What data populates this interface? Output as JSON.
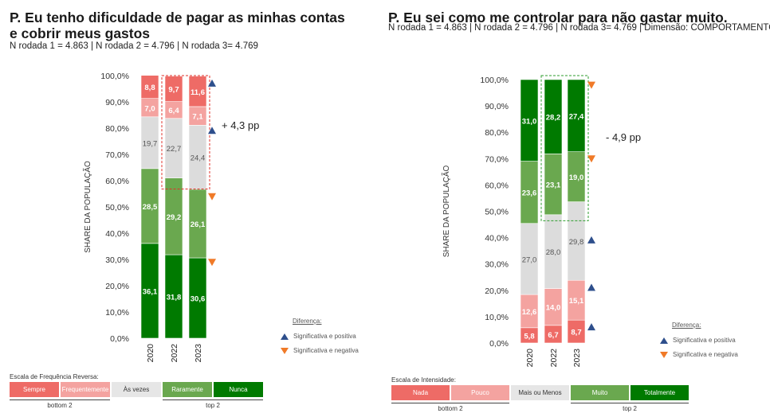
{
  "panels": [
    {
      "title": "P. Eu tenho dificuldade de pagar as minhas contas\ne cobrir meus gastos",
      "subtitle": "N rodada 1 = 4.863  | N rodada 2 = 4.796 | N rodada 3= 4.769",
      "legend": {
        "title": "Diferença:",
        "positive": "Significativa e positiva",
        "negative": "Significativa e negativa"
      },
      "scale": {
        "title": "Escala de Frequência Reversa:",
        "labels": [
          "Sempre",
          "Frequentemente",
          "Às vezes",
          "Raramente",
          "Nunca"
        ],
        "bottom_label": "bottom 2",
        "top_label": "top 2"
      }
    },
    {
      "title": "P. Eu sei como me controlar para não gastar muito.",
      "subtitle": "N rodada 1 = 4.863  | N rodada 2 = 4.796 | N rodada 3= 4.769 | Dimensão: COMPORTAMENTO",
      "legend": {
        "title": "Diferença:",
        "positive": "Significativa e positiva",
        "negative": "Significativa e negativa"
      },
      "scale": {
        "title": "Escala de Intensidade:",
        "labels": [
          "Nada",
          "Pouco",
          "Mais ou Menos",
          "Muito",
          "Totalmente"
        ],
        "bottom_label": "bottom 2",
        "top_label": "top 2"
      }
    }
  ],
  "colors": {
    "dark_green": "#007a00",
    "mid_green": "#6aa84f",
    "gray": "#dcdcdc",
    "light_red": "#f4a3a0",
    "red": "#ee6b66",
    "up_arrow": "#2e4f8c",
    "down_arrow": "#f07a28"
  },
  "chart_data": [
    {
      "type": "bar",
      "stacked": true,
      "categories": [
        "2020",
        "2022",
        "2023"
      ],
      "ylabel": "SHARE DA POPULAÇÃO",
      "ylim": [
        0,
        100
      ],
      "yticks": [
        "0,0%",
        "10,0%",
        "20,0%",
        "30,0%",
        "40,0%",
        "50,0%",
        "60,0%",
        "70,0%",
        "80,0%",
        "90,0%",
        "100,0%"
      ],
      "series": [
        {
          "name": "Nunca",
          "values": [
            36.1,
            31.8,
            30.6
          ],
          "labels": [
            "36,1",
            "31,8",
            "30,6"
          ],
          "color_key": "dark_green"
        },
        {
          "name": "Raramente",
          "values": [
            28.5,
            29.2,
            26.1
          ],
          "labels": [
            "28,5",
            "29,2",
            "26,1"
          ],
          "color_key": "mid_green"
        },
        {
          "name": "Às vezes",
          "values": [
            19.7,
            22.7,
            24.4
          ],
          "labels": [
            "19,7",
            "22,7",
            "24,4"
          ],
          "color_key": "gray"
        },
        {
          "name": "Frequentemente",
          "values": [
            7.0,
            6.4,
            7.1
          ],
          "labels": [
            "7,0",
            "6,4",
            "7,1"
          ],
          "color_key": "light_red"
        },
        {
          "name": "Sempre",
          "values": [
            8.8,
            9.7,
            11.6
          ],
          "labels": [
            "8,8",
            "9,7",
            "11,6"
          ],
          "color_key": "red"
        }
      ],
      "highlight": {
        "from_category": 1,
        "to_category": 2,
        "range": [
          56.8,
          100
        ],
        "color": "#e0302a",
        "text": "+ 4,3 pp"
      },
      "markers": [
        {
          "category": 2,
          "value": 97,
          "direction": "up"
        },
        {
          "category": 2,
          "value": 79,
          "direction": "up"
        },
        {
          "category": 2,
          "value": 54,
          "direction": "down"
        },
        {
          "category": 2,
          "value": 29,
          "direction": "down"
        }
      ]
    },
    {
      "type": "bar",
      "stacked": true,
      "categories": [
        "2020",
        "2022",
        "2023"
      ],
      "ylabel": "SHARE DA POPULAÇÃO",
      "ylim": [
        0,
        100
      ],
      "yticks": [
        "0,0%",
        "10,0%",
        "20,0%",
        "30,0%",
        "40,0%",
        "50,0%",
        "60,0%",
        "70,0%",
        "80,0%",
        "90,0%",
        "100,0%"
      ],
      "series": [
        {
          "name": "Nada",
          "values": [
            5.8,
            6.7,
            8.7
          ],
          "labels": [
            "5,8",
            "6,7",
            "8,7"
          ],
          "color_key": "red"
        },
        {
          "name": "Pouco",
          "values": [
            12.6,
            14.0,
            15.1
          ],
          "labels": [
            "12,6",
            "14,0",
            "15,1"
          ],
          "color_key": "light_red"
        },
        {
          "name": "Mais ou Menos",
          "values": [
            27.0,
            28.0,
            29.8
          ],
          "labels": [
            "27,0",
            "28,0",
            "29,8"
          ],
          "color_key": "gray"
        },
        {
          "name": "Muito",
          "values": [
            23.6,
            23.1,
            19.0
          ],
          "labels": [
            "23,6",
            "23,1",
            "19,0"
          ],
          "color_key": "mid_green"
        },
        {
          "name": "Totalmente",
          "values": [
            31.0,
            28.2,
            27.4
          ],
          "labels": [
            "31,0",
            "28,2",
            "27,4"
          ],
          "color_key": "dark_green"
        }
      ],
      "highlight": {
        "from_category": 1,
        "to_category": 2,
        "range": [
          46.4,
          101.5
        ],
        "color": "#2e9e2e",
        "text": "- 4,9 pp"
      },
      "markers": [
        {
          "category": 2,
          "value": 98,
          "direction": "down"
        },
        {
          "category": 2,
          "value": 70,
          "direction": "down"
        },
        {
          "category": 2,
          "value": 39,
          "direction": "up"
        },
        {
          "category": 2,
          "value": 21,
          "direction": "up"
        },
        {
          "category": 2,
          "value": 6,
          "direction": "up"
        }
      ]
    }
  ]
}
